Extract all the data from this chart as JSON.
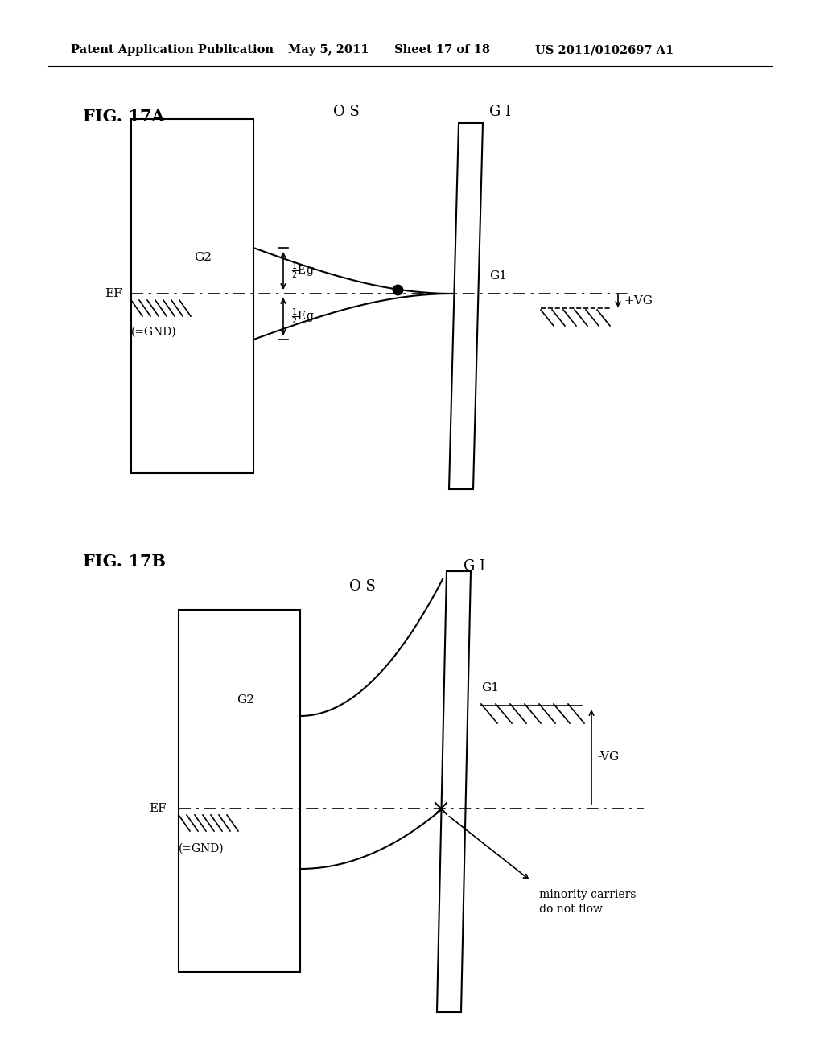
{
  "bg_color": "#ffffff",
  "header_text": "Patent Application Publication",
  "header_date": "May 5, 2011",
  "header_sheet": "Sheet 17 of 18",
  "header_patent": "US 2011/0102697 A1",
  "fig17a_label": "FIG. 17A",
  "fig17b_label": "FIG. 17B",
  "label_OS_17a": "O S",
  "label_GI_17a": "G I",
  "label_G2_17a": "G2",
  "label_EF_17a": "EF",
  "label_GND_17a": "(=GND)",
  "label_G1_17a": "G1",
  "label_VG_17a": "+VG",
  "label_OS_17b": "O S",
  "label_GI_17b": "G I",
  "label_G2_17b": "G2",
  "label_EF_17b": "EF",
  "label_GND_17b": "(=GND)",
  "label_G1_17b": "G1",
  "label_VG_17b": "-VG",
  "label_minority": "minority carriers",
  "label_do_not_flow": "do not flow",
  "line_color": "#000000"
}
